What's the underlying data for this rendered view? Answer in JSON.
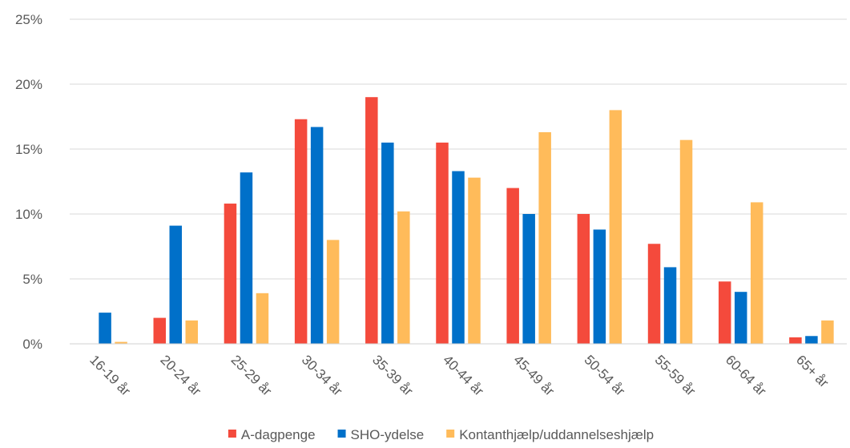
{
  "chart_data": {
    "type": "bar",
    "categories": [
      "16-19 år",
      "20-24 år",
      "25-29 år",
      "30-34 år",
      "35-39 år",
      "40-44 år",
      "45-49 år",
      "50-54 år",
      "55-59 år",
      "60-64 år",
      "65+ år"
    ],
    "series": [
      {
        "name": "A-dagpenge",
        "color": "#f44a3c",
        "values": [
          0,
          2.0,
          10.8,
          17.3,
          19.0,
          15.5,
          12.0,
          10.0,
          7.7,
          4.8,
          0.5
        ]
      },
      {
        "name": "SHO-ydelse",
        "color": "#0070c9",
        "values": [
          2.4,
          9.1,
          13.2,
          16.7,
          15.5,
          13.3,
          10.0,
          8.8,
          5.9,
          4.0,
          0.6
        ]
      },
      {
        "name": "Kontanthjælp/uddannelseshjælp",
        "color": "#ffbb5a",
        "values": [
          0.15,
          1.8,
          3.9,
          8.0,
          10.2,
          12.8,
          16.3,
          18.0,
          15.7,
          10.9,
          1.8
        ]
      }
    ],
    "yticks": [
      "0%",
      "5%",
      "10%",
      "15%",
      "20%",
      "25%"
    ],
    "ylim": [
      0,
      25
    ],
    "grid": true,
    "legend": "bottom"
  }
}
